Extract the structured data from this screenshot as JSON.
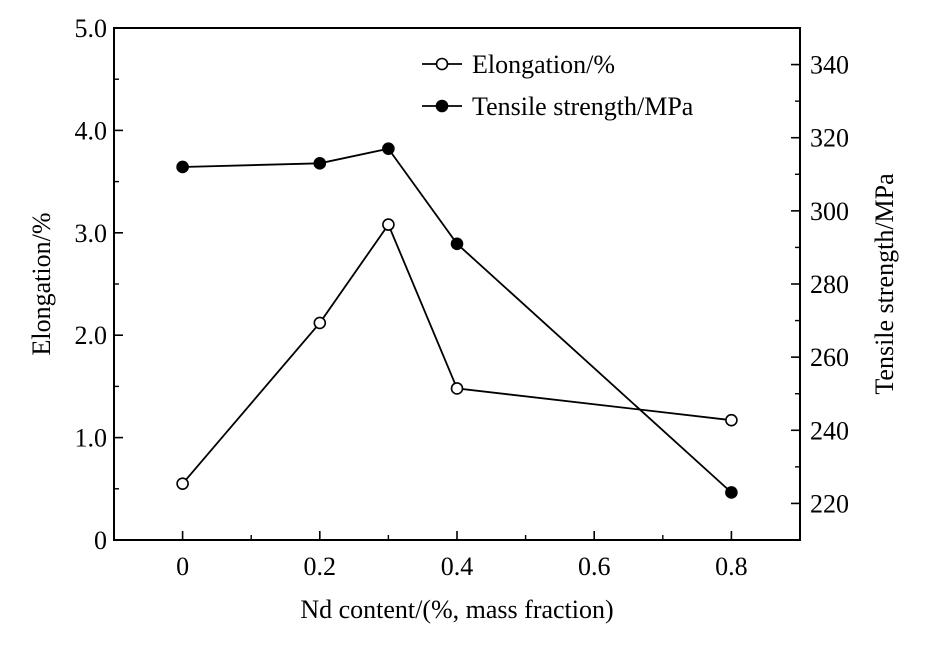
{
  "chart_data": {
    "type": "line",
    "x": [
      0,
      0.2,
      0.3,
      0.4,
      0.8
    ],
    "x_ticks": [
      "0",
      "0.2",
      "0.4",
      "0.6",
      "0.8"
    ],
    "xlim": [
      -0.1,
      0.9
    ],
    "xlabel": "Nd content/(%, mass fraction)",
    "ylabel_left": "Elongation/%",
    "ylabel_right": "Tensile strength/MPa",
    "ylim_left": [
      0,
      5.0
    ],
    "ylim_right": [
      210,
      350
    ],
    "y_ticks_left": [
      "0",
      "1.0",
      "2.0",
      "3.0",
      "4.0",
      "5.0"
    ],
    "y_ticks_right": [
      "220",
      "240",
      "260",
      "280",
      "300",
      "320",
      "340"
    ],
    "legend_position": "top-right",
    "grid": false,
    "series": [
      {
        "name": "Elongation/%",
        "axis": "left",
        "marker": "open-circle",
        "color": "#000000",
        "values": [
          0.55,
          2.12,
          3.08,
          1.48,
          1.17
        ]
      },
      {
        "name": "Tensile strength/MPa",
        "axis": "right",
        "marker": "filled-circle",
        "color": "#000000",
        "values": [
          312,
          313,
          317,
          291,
          223
        ]
      }
    ]
  }
}
